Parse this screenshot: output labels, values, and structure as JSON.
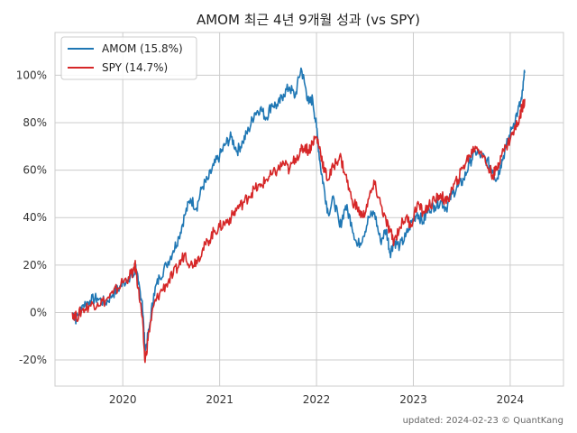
{
  "chart_data": {
    "type": "line",
    "title": "AMOM 최근 4년 9개월 성과 (vs SPY)",
    "xlabel": "",
    "ylabel": "",
    "x_ticks": [
      {
        "label": "2020",
        "year": 2020.0
      },
      {
        "label": "2021",
        "year": 2021.0
      },
      {
        "label": "2022",
        "year": 2022.0
      },
      {
        "label": "2023",
        "year": 2023.0
      },
      {
        "label": "2024",
        "year": 2024.0
      }
    ],
    "y_ticks": [
      {
        "label": "-20%",
        "value": -20
      },
      {
        "label": "0%",
        "value": 0
      },
      {
        "label": "20%",
        "value": 20
      },
      {
        "label": "40%",
        "value": 40
      },
      {
        "label": "60%",
        "value": 60
      },
      {
        "label": "80%",
        "value": 80
      },
      {
        "label": "100%",
        "value": 100
      }
    ],
    "xlim": [
      2019.3,
      2024.55
    ],
    "ylim": [
      -31,
      118
    ],
    "grid": true,
    "legend_position": "top-left",
    "series": [
      {
        "name": "AMOM (15.8%)",
        "color": "#1f77b4",
        "points": [
          [
            2019.48,
            0
          ],
          [
            2019.52,
            -3
          ],
          [
            2019.58,
            3
          ],
          [
            2019.66,
            5
          ],
          [
            2019.74,
            6
          ],
          [
            2019.82,
            4
          ],
          [
            2019.9,
            8
          ],
          [
            2019.98,
            11
          ],
          [
            2020.06,
            15
          ],
          [
            2020.12,
            16
          ],
          [
            2020.13,
            20
          ],
          [
            2020.16,
            12
          ],
          [
            2020.2,
            5
          ],
          [
            2020.23,
            -16
          ],
          [
            2020.27,
            -8
          ],
          [
            2020.32,
            8
          ],
          [
            2020.38,
            15
          ],
          [
            2020.45,
            20
          ],
          [
            2020.52,
            26
          ],
          [
            2020.58,
            32
          ],
          [
            2020.64,
            41
          ],
          [
            2020.7,
            48
          ],
          [
            2020.76,
            44
          ],
          [
            2020.82,
            53
          ],
          [
            2020.88,
            56
          ],
          [
            2020.94,
            62
          ],
          [
            2021.0,
            66
          ],
          [
            2021.06,
            71
          ],
          [
            2021.12,
            74
          ],
          [
            2021.18,
            68
          ],
          [
            2021.24,
            72
          ],
          [
            2021.3,
            77
          ],
          [
            2021.36,
            84
          ],
          [
            2021.42,
            86
          ],
          [
            2021.48,
            82
          ],
          [
            2021.54,
            88
          ],
          [
            2021.6,
            87
          ],
          [
            2021.66,
            92
          ],
          [
            2021.72,
            95
          ],
          [
            2021.78,
            91
          ],
          [
            2021.84,
            103
          ],
          [
            2021.88,
            96
          ],
          [
            2021.92,
            88
          ],
          [
            2021.96,
            90
          ],
          [
            2022.0,
            78
          ],
          [
            2022.04,
            62
          ],
          [
            2022.08,
            52
          ],
          [
            2022.12,
            42
          ],
          [
            2022.18,
            48
          ],
          [
            2022.24,
            36
          ],
          [
            2022.3,
            45
          ],
          [
            2022.36,
            38
          ],
          [
            2022.42,
            28
          ],
          [
            2022.48,
            32
          ],
          [
            2022.54,
            40
          ],
          [
            2022.6,
            42
          ],
          [
            2022.66,
            30
          ],
          [
            2022.72,
            35
          ],
          [
            2022.76,
            25
          ],
          [
            2022.8,
            30
          ],
          [
            2022.86,
            28
          ],
          [
            2022.92,
            32
          ],
          [
            2022.98,
            38
          ],
          [
            2023.04,
            42
          ],
          [
            2023.1,
            38
          ],
          [
            2023.16,
            44
          ],
          [
            2023.22,
            45
          ],
          [
            2023.28,
            47
          ],
          [
            2023.34,
            44
          ],
          [
            2023.4,
            50
          ],
          [
            2023.46,
            53
          ],
          [
            2023.52,
            56
          ],
          [
            2023.58,
            63
          ],
          [
            2023.64,
            68
          ],
          [
            2023.7,
            66
          ],
          [
            2023.76,
            64
          ],
          [
            2023.82,
            60
          ],
          [
            2023.86,
            56
          ],
          [
            2023.9,
            62
          ],
          [
            2023.96,
            70
          ],
          [
            2024.02,
            78
          ],
          [
            2024.08,
            85
          ],
          [
            2024.12,
            90
          ],
          [
            2024.15,
            101
          ]
        ]
      },
      {
        "name": "SPY (14.7%)",
        "color": "#d62728",
        "points": [
          [
            2019.48,
            0
          ],
          [
            2019.52,
            -2
          ],
          [
            2019.58,
            1
          ],
          [
            2019.66,
            3
          ],
          [
            2019.74,
            4
          ],
          [
            2019.82,
            5
          ],
          [
            2019.9,
            8
          ],
          [
            2019.98,
            12
          ],
          [
            2020.06,
            15
          ],
          [
            2020.12,
            18
          ],
          [
            2020.13,
            20
          ],
          [
            2020.16,
            10
          ],
          [
            2020.2,
            -2
          ],
          [
            2020.23,
            -21
          ],
          [
            2020.27,
            -8
          ],
          [
            2020.32,
            3
          ],
          [
            2020.38,
            8
          ],
          [
            2020.45,
            12
          ],
          [
            2020.52,
            16
          ],
          [
            2020.58,
            20
          ],
          [
            2020.64,
            25
          ],
          [
            2020.7,
            20
          ],
          [
            2020.76,
            22
          ],
          [
            2020.82,
            26
          ],
          [
            2020.88,
            30
          ],
          [
            2020.94,
            34
          ],
          [
            2021.0,
            36
          ],
          [
            2021.06,
            38
          ],
          [
            2021.12,
            40
          ],
          [
            2021.18,
            44
          ],
          [
            2021.24,
            46
          ],
          [
            2021.3,
            49
          ],
          [
            2021.36,
            52
          ],
          [
            2021.42,
            53
          ],
          [
            2021.48,
            56
          ],
          [
            2021.54,
            58
          ],
          [
            2021.6,
            60
          ],
          [
            2021.66,
            63
          ],
          [
            2021.72,
            60
          ],
          [
            2021.78,
            65
          ],
          [
            2021.84,
            68
          ],
          [
            2021.88,
            70
          ],
          [
            2021.92,
            68
          ],
          [
            2021.96,
            72
          ],
          [
            2022.0,
            74
          ],
          [
            2022.04,
            68
          ],
          [
            2022.08,
            60
          ],
          [
            2022.12,
            56
          ],
          [
            2022.18,
            62
          ],
          [
            2022.24,
            66
          ],
          [
            2022.3,
            58
          ],
          [
            2022.36,
            48
          ],
          [
            2022.42,
            44
          ],
          [
            2022.48,
            40
          ],
          [
            2022.54,
            48
          ],
          [
            2022.6,
            54
          ],
          [
            2022.66,
            46
          ],
          [
            2022.72,
            38
          ],
          [
            2022.76,
            34
          ],
          [
            2022.8,
            30
          ],
          [
            2022.86,
            36
          ],
          [
            2022.92,
            40
          ],
          [
            2022.98,
            37
          ],
          [
            2023.04,
            46
          ],
          [
            2023.1,
            42
          ],
          [
            2023.16,
            45
          ],
          [
            2023.22,
            47
          ],
          [
            2023.28,
            50
          ],
          [
            2023.34,
            46
          ],
          [
            2023.4,
            52
          ],
          [
            2023.46,
            56
          ],
          [
            2023.52,
            62
          ],
          [
            2023.58,
            66
          ],
          [
            2023.64,
            70
          ],
          [
            2023.7,
            68
          ],
          [
            2023.76,
            62
          ],
          [
            2023.82,
            58
          ],
          [
            2023.86,
            60
          ],
          [
            2023.9,
            66
          ],
          [
            2023.96,
            70
          ],
          [
            2024.02,
            75
          ],
          [
            2024.08,
            80
          ],
          [
            2024.12,
            86
          ],
          [
            2024.15,
            90
          ]
        ]
      }
    ],
    "footer": "updated: 2024-02-23 © QuantKang"
  }
}
